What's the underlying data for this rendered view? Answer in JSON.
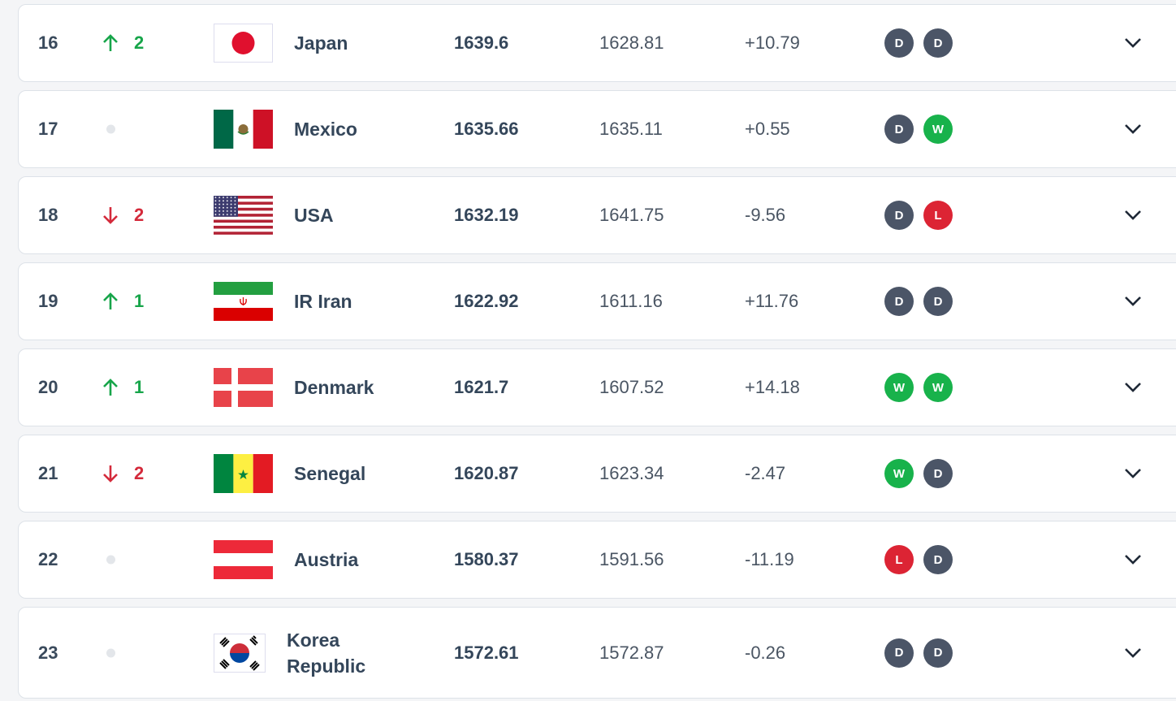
{
  "rows": [
    {
      "rank": 16,
      "move": 2,
      "team": "Japan",
      "points": 1639.6,
      "previous_points": 1628.81,
      "change": "+10.79",
      "form": [
        "D",
        "D"
      ]
    },
    {
      "rank": 17,
      "team": "Mexico",
      "points": 1635.66,
      "previous_points": 1635.11,
      "change": "+0.55",
      "form": [
        "D",
        "W"
      ]
    },
    {
      "rank": 18,
      "move": 2,
      "team": "USA",
      "points": 1632.19,
      "previous_points": 1641.75,
      "change": "-9.56",
      "form": [
        "D",
        "L"
      ]
    },
    {
      "rank": 19,
      "move": 1,
      "team": "IR Iran",
      "points": 1622.92,
      "previous_points": 1611.16,
      "change": "+11.76",
      "form": [
        "D",
        "D"
      ]
    },
    {
      "rank": 20,
      "move": 1,
      "team": "Denmark",
      "points": 1621.7,
      "previous_points": 1607.52,
      "change": "+14.18",
      "form": [
        "W",
        "W"
      ]
    },
    {
      "rank": 21,
      "move": 2,
      "team": "Senegal",
      "points": 1620.87,
      "previous_points": 1623.34,
      "change": "-2.47",
      "form": [
        "W",
        "D"
      ]
    },
    {
      "rank": 22,
      "team": "Austria",
      "points": 1580.37,
      "previous_points": 1591.56,
      "change": "-11.19",
      "form": [
        "L",
        "D"
      ]
    },
    {
      "rank": 23,
      "team": "Korea Republic",
      "points": 1572.61,
      "previous_points": 1572.87,
      "change": "-0.26",
      "form": [
        "D",
        "D"
      ]
    }
  ]
}
